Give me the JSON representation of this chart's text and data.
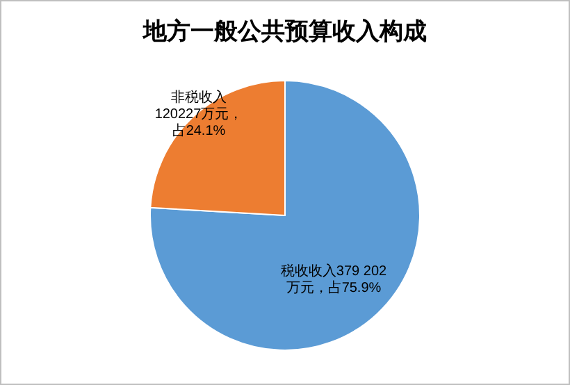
{
  "chart_data": {
    "type": "pie",
    "title": "地方一般公共预算收入构成",
    "categories": [
      "税收收入",
      "非税收入"
    ],
    "values": [
      379202,
      120227
    ],
    "value_labels": [
      "379 202万元，占75.9%",
      "120227万元，占24.1%"
    ],
    "colors": [
      "#5b9bd5",
      "#ed7d31"
    ],
    "legend": false
  }
}
